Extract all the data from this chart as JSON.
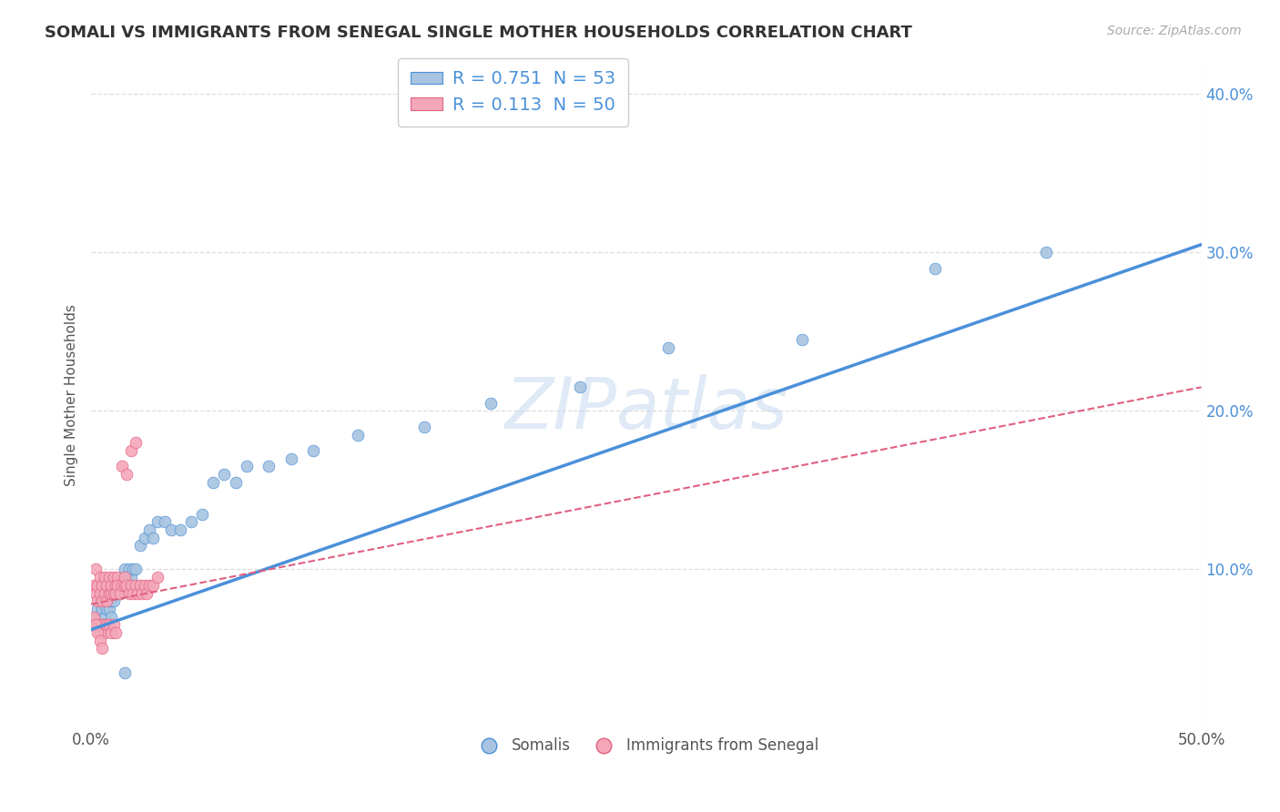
{
  "title": "SOMALI VS IMMIGRANTS FROM SENEGAL SINGLE MOTHER HOUSEHOLDS CORRELATION CHART",
  "source": "Source: ZipAtlas.com",
  "ylabel": "Single Mother Households",
  "xlim": [
    0.0,
    0.5
  ],
  "ylim": [
    0.0,
    0.42
  ],
  "xticks": [
    0.0,
    0.5
  ],
  "yticks": [
    0.1,
    0.2,
    0.3,
    0.4
  ],
  "legend_labels": [
    "R = 0.751  N = 53",
    "R = 0.113  N = 50"
  ],
  "legend_bottom_labels": [
    "Somalis",
    "Immigrants from Senegal"
  ],
  "somali_color": "#a8c4e0",
  "senegal_color": "#f4a7b9",
  "somali_line_color": "#4a90d9",
  "senegal_line_color": "#e06080",
  "somali_scatter_x": [
    0.002,
    0.003,
    0.004,
    0.004,
    0.005,
    0.005,
    0.006,
    0.006,
    0.007,
    0.007,
    0.008,
    0.008,
    0.009,
    0.009,
    0.01,
    0.01,
    0.011,
    0.012,
    0.013,
    0.014,
    0.015,
    0.015,
    0.016,
    0.017,
    0.018,
    0.019,
    0.02,
    0.022,
    0.024,
    0.026,
    0.028,
    0.03,
    0.033,
    0.036,
    0.04,
    0.045,
    0.05,
    0.055,
    0.06,
    0.065,
    0.07,
    0.08,
    0.09,
    0.1,
    0.12,
    0.15,
    0.18,
    0.22,
    0.26,
    0.32,
    0.38,
    0.43,
    0.015
  ],
  "somali_scatter_y": [
    0.07,
    0.075,
    0.065,
    0.08,
    0.075,
    0.085,
    0.07,
    0.08,
    0.075,
    0.085,
    0.075,
    0.08,
    0.07,
    0.08,
    0.08,
    0.09,
    0.085,
    0.09,
    0.085,
    0.095,
    0.09,
    0.1,
    0.095,
    0.1,
    0.095,
    0.1,
    0.1,
    0.115,
    0.12,
    0.125,
    0.12,
    0.13,
    0.13,
    0.125,
    0.125,
    0.13,
    0.135,
    0.155,
    0.16,
    0.155,
    0.165,
    0.165,
    0.17,
    0.175,
    0.185,
    0.19,
    0.205,
    0.215,
    0.24,
    0.245,
    0.29,
    0.3,
    0.035
  ],
  "senegal_scatter_x": [
    0.001,
    0.002,
    0.002,
    0.003,
    0.003,
    0.004,
    0.004,
    0.005,
    0.005,
    0.006,
    0.006,
    0.007,
    0.007,
    0.008,
    0.008,
    0.009,
    0.009,
    0.01,
    0.01,
    0.011,
    0.011,
    0.012,
    0.012,
    0.013,
    0.014,
    0.015,
    0.015,
    0.016,
    0.017,
    0.018,
    0.019,
    0.02,
    0.021,
    0.022,
    0.023,
    0.024,
    0.025,
    0.026,
    0.028,
    0.03,
    0.002,
    0.003,
    0.004,
    0.005,
    0.006,
    0.007,
    0.008,
    0.009,
    0.01,
    0.011
  ],
  "senegal_scatter_y": [
    0.09,
    0.085,
    0.1,
    0.08,
    0.09,
    0.085,
    0.095,
    0.08,
    0.09,
    0.085,
    0.095,
    0.08,
    0.09,
    0.085,
    0.095,
    0.085,
    0.09,
    0.085,
    0.095,
    0.09,
    0.085,
    0.095,
    0.09,
    0.085,
    0.09,
    0.09,
    0.095,
    0.09,
    0.085,
    0.09,
    0.085,
    0.09,
    0.085,
    0.09,
    0.085,
    0.09,
    0.085,
    0.09,
    0.09,
    0.095,
    0.065,
    0.065,
    0.06,
    0.065,
    0.06,
    0.065,
    0.065,
    0.06,
    0.065,
    0.06
  ],
  "senegal_extra_x": [
    0.001,
    0.002,
    0.003,
    0.004,
    0.005,
    0.014,
    0.016,
    0.018,
    0.02
  ],
  "senegal_extra_y": [
    0.07,
    0.065,
    0.06,
    0.055,
    0.05,
    0.165,
    0.16,
    0.175,
    0.18
  ],
  "somali_line_x": [
    0.0,
    0.5
  ],
  "somali_line_y": [
    0.062,
    0.305
  ],
  "senegal_line_x": [
    0.0,
    0.5
  ],
  "senegal_line_y": [
    0.078,
    0.215
  ],
  "background_color": "#ffffff",
  "grid_color": "#dddddd",
  "title_fontsize": 13,
  "axis_label_fontsize": 11,
  "tick_fontsize": 12
}
